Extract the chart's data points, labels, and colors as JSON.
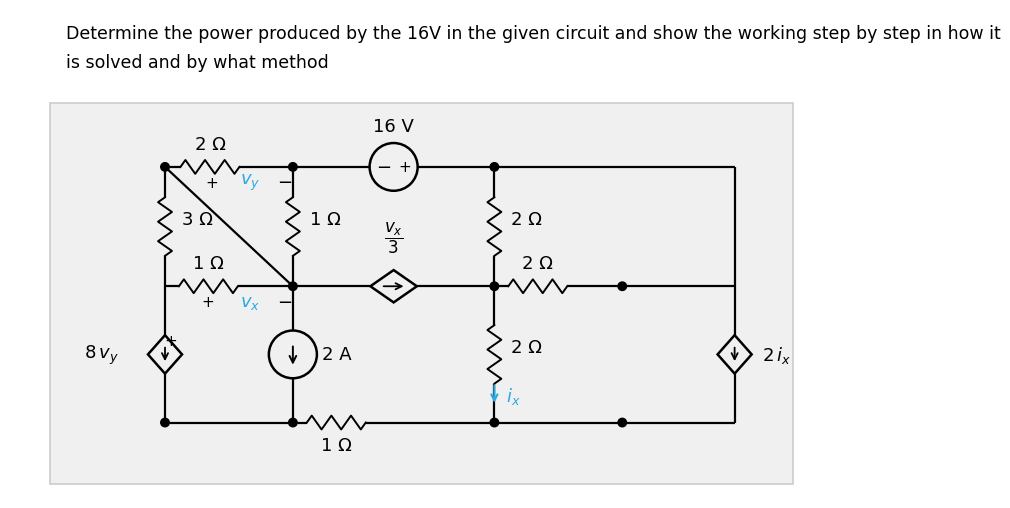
{
  "title_line1": "Determine the power produced by the 16V in the given circuit and show the working step by step in how it",
  "title_line2": "is solved and by what method",
  "bg_color": "#ffffff",
  "box_bg": "#f0f0f0",
  "box_edge": "#cccccc",
  "wire_color": "#000000",
  "cyan_color": "#29abe2",
  "title_fontsize": 12.5,
  "comp_fontsize": 13,
  "label_fontsize": 13
}
